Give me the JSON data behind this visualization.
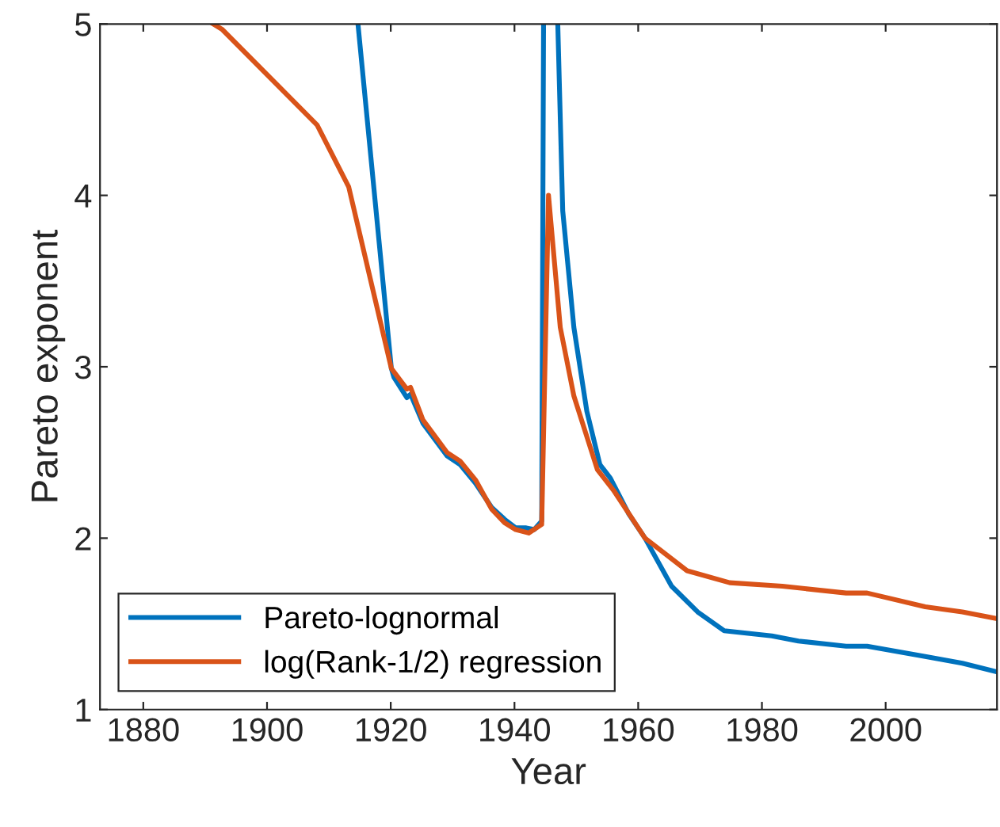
{
  "chart_data": {
    "type": "line",
    "xlabel": "Year",
    "ylabel": "Pareto exponent",
    "xlim": [
      1873,
      2018
    ],
    "xticks": [
      1880,
      1900,
      1920,
      1940,
      1960,
      1980,
      2000
    ],
    "ylim": [
      1,
      5
    ],
    "yticks": [
      1,
      2,
      3,
      4,
      5
    ],
    "grid": false,
    "legend": "bottom left",
    "marker": "none",
    "line_style": "solid",
    "series": [
      {
        "name": "Pareto-lognormal",
        "color": "#0072bd",
        "x": [
          1914.7,
          1920.1,
          1920.5,
          1922.6,
          1923.2,
          1925.2,
          1929.1,
          1931.2,
          1933.7,
          1936.3,
          1938.4,
          1940.2,
          1941.9,
          1943.2,
          1944.4,
          1944.7,
          1945.8,
          1947.0,
          1947.8,
          1949.6,
          1951.7,
          1953.8,
          1955.5,
          1958.5,
          1961.1,
          1965.4,
          1969.6,
          1973.9,
          1981.6,
          1985.9,
          1993.6,
          1997.0,
          2006.4,
          2012.4,
          2018
        ],
        "values": [
          5.0,
          2.99,
          2.94,
          2.82,
          2.84,
          2.67,
          2.48,
          2.43,
          2.32,
          2.18,
          2.11,
          2.06,
          2.06,
          2.05,
          2.1,
          5.0,
          null,
          5.0,
          3.91,
          3.23,
          2.74,
          2.43,
          2.35,
          2.14,
          2.0,
          1.72,
          1.57,
          1.46,
          1.43,
          1.4,
          1.37,
          1.37,
          1.31,
          1.27,
          1.22
        ]
      },
      {
        "name": "log(Rank-1/2) regression",
        "color": "#d95319",
        "x": [
          1891.3,
          1892.7,
          1908.1,
          1913.2,
          1920.1,
          1922.6,
          1923.2,
          1925.2,
          1929.1,
          1931.2,
          1933.7,
          1936.3,
          1938.4,
          1940.2,
          1942.3,
          1944.4,
          1945.5,
          1947.4,
          1949.6,
          1953.4,
          1956.0,
          1961.1,
          1967.9,
          1974.8,
          1983.3,
          1993.6,
          1997.0,
          2006.4,
          2012.4,
          2018
        ],
        "values": [
          5.0,
          4.97,
          4.41,
          4.05,
          2.99,
          2.87,
          2.88,
          2.69,
          2.5,
          2.45,
          2.34,
          2.17,
          2.09,
          2.05,
          2.03,
          2.08,
          4.0,
          3.23,
          2.83,
          2.4,
          2.28,
          2.0,
          1.81,
          1.74,
          1.72,
          1.68,
          1.68,
          1.6,
          1.57,
          1.53
        ]
      }
    ]
  }
}
